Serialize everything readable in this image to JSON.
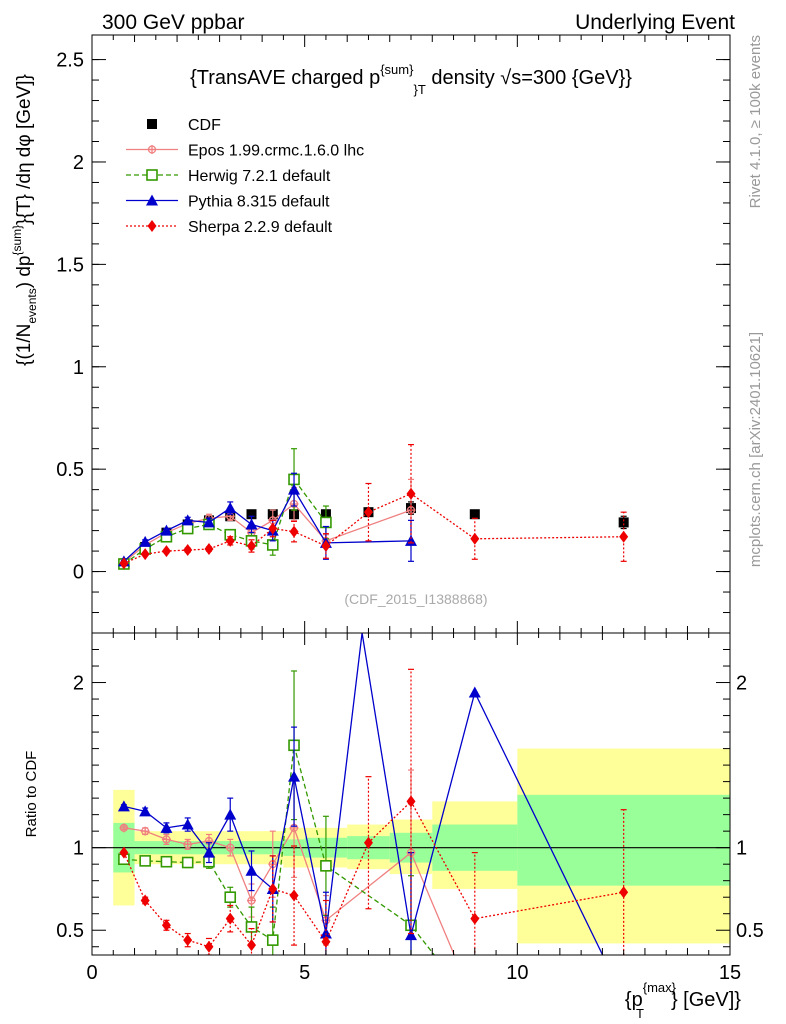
{
  "header": {
    "left": "300 GeV ppbar",
    "right": "Underlying Event"
  },
  "side_labels": {
    "top": "Rivet 4.1.0, ≥ 100k events",
    "bottom": "mcplots.cern.ch [arXiv:2401.10621]"
  },
  "chart_data": [
    {
      "type": "scatter",
      "panel": "main",
      "title": "{TransAVE charged p^{sum}_T density √s=300 {GeV}}",
      "watermark": "(CDF_2015_I1388868)",
      "ylabel": "{(1/N_events) dp^{sum}}{T} /dη dφ [GeV]}",
      "ylabel_parts": {
        "a": "{(1/N",
        "b": "events",
        "c": ") dp",
        "d": "{sum}",
        "e": "}{T} /dη  dφ [GeV]}"
      },
      "xlabel": "",
      "xlim": [
        0,
        15
      ],
      "ylim": [
        -0.3,
        2.62
      ],
      "x_ticks": [
        0,
        5,
        10,
        15
      ],
      "y_ticks": [
        0,
        0.5,
        1,
        1.5,
        2,
        2.5
      ],
      "y_tick_labels": [
        "0",
        "0.5",
        "1",
        "1.5",
        "2",
        "2.5"
      ],
      "legend_position": "top-left",
      "series": [
        {
          "name": "CDF",
          "color": "#000000",
          "marker": "square",
          "x": [
            0.75,
            1.25,
            1.75,
            2.25,
            2.75,
            3.25,
            3.75,
            4.25,
            4.75,
            5.5,
            6.5,
            7.5,
            9.0,
            12.5
          ],
          "y": [
            0.04,
            0.12,
            0.19,
            0.23,
            0.25,
            0.27,
            0.28,
            0.28,
            0.28,
            0.28,
            0.29,
            0.31,
            0.28,
            0.24
          ],
          "err": [
            0.005,
            0.01,
            0.015,
            0.015,
            0.02,
            0.02,
            0.02,
            0.02,
            0.02,
            0.02,
            0.02,
            0.03,
            0.02,
            0.03
          ]
        },
        {
          "name": "Epos 1.99.crmc.1.6.0 lhc",
          "color": "#f08080",
          "marker": "cross",
          "line": "solid",
          "x": [
            0.75,
            1.25,
            1.75,
            2.25,
            2.75,
            3.25,
            3.75,
            4.25,
            4.75,
            5.5,
            7.5
          ],
          "y": [
            0.045,
            0.13,
            0.19,
            0.235,
            0.26,
            0.27,
            0.19,
            0.25,
            0.33,
            0.15,
            0.3
          ],
          "err": [
            0.003,
            0.01,
            0.01,
            0.015,
            0.02,
            0.02,
            0.03,
            0.05,
            0.08,
            0.03,
            0.15
          ]
        },
        {
          "name": "Herwig 7.2.1 default",
          "color": "#339900",
          "marker": "open-square",
          "line": "dashed",
          "x": [
            0.75,
            1.25,
            1.75,
            2.25,
            2.75,
            3.25,
            3.75,
            4.25,
            4.75,
            5.5
          ],
          "y": [
            0.037,
            0.11,
            0.17,
            0.21,
            0.23,
            0.18,
            0.15,
            0.13,
            0.45,
            0.24
          ],
          "err": [
            0.003,
            0.01,
            0.01,
            0.015,
            0.02,
            0.02,
            0.04,
            0.05,
            0.15,
            0.08
          ]
        },
        {
          "name": "Pythia 8.315 default",
          "color": "#0000cc",
          "marker": "triangle",
          "line": "solid",
          "x": [
            0.75,
            1.25,
            1.75,
            2.25,
            2.75,
            3.25,
            3.75,
            4.25,
            4.75,
            5.5,
            7.5
          ],
          "y": [
            0.05,
            0.145,
            0.2,
            0.25,
            0.24,
            0.31,
            0.23,
            0.2,
            0.4,
            0.14,
            0.15
          ],
          "err": [
            0.003,
            0.01,
            0.01,
            0.015,
            0.02,
            0.03,
            0.04,
            0.05,
            0.08,
            0.08,
            0.1
          ]
        },
        {
          "name": "Sherpa 2.2.9 default",
          "color": "#ee0000",
          "marker": "diamond",
          "line": "dotted",
          "x": [
            0.75,
            1.25,
            1.75,
            2.25,
            2.75,
            3.25,
            3.75,
            4.25,
            4.75,
            5.5,
            6.5,
            7.5,
            9.0,
            12.5
          ],
          "y": [
            0.04,
            0.085,
            0.1,
            0.105,
            0.11,
            0.15,
            0.125,
            0.21,
            0.195,
            0.125,
            0.29,
            0.38,
            0.16,
            0.17
          ],
          "err": [
            0.003,
            0.005,
            0.008,
            0.01,
            0.01,
            0.02,
            0.03,
            0.04,
            0.05,
            0.06,
            0.14,
            0.24,
            0.1,
            0.12
          ]
        }
      ]
    },
    {
      "type": "scatter",
      "panel": "ratio",
      "ylabel": "Ratio to CDF",
      "xlabel": "{p_T^{max}} [GeV]}",
      "xlabel_parts": {
        "a": "{p",
        "sup": "{max}",
        "sub": "T",
        "c": "} [GeV]}"
      },
      "xlim": [
        0,
        15
      ],
      "ylim": [
        0.35,
        2.3
      ],
      "x_ticks": [
        0,
        5,
        10,
        15
      ],
      "x_tick_labels": [
        "0",
        "5",
        "10",
        "15"
      ],
      "y_ticks": [
        0.5,
        1,
        2
      ],
      "y_tick_labels": [
        "0.5",
        "1",
        "2"
      ],
      "reference_line": 1,
      "uncertainty_bands": [
        {
          "x0": 0.5,
          "x1": 1.0,
          "inner": [
            0.85,
            1.15
          ],
          "outer": [
            0.65,
            1.35
          ]
        },
        {
          "x0": 1.0,
          "x1": 4.5,
          "inner": [
            0.96,
            1.04
          ],
          "outer": [
            0.9,
            1.1
          ]
        },
        {
          "x0": 4.5,
          "x1": 5.0,
          "inner": [
            0.95,
            1.05
          ],
          "outer": [
            0.88,
            1.12
          ]
        },
        {
          "x0": 5.0,
          "x1": 6.0,
          "inner": [
            0.94,
            1.06
          ],
          "outer": [
            0.88,
            1.12
          ]
        },
        {
          "x0": 6.0,
          "x1": 7.0,
          "inner": [
            0.93,
            1.07
          ],
          "outer": [
            0.87,
            1.14
          ]
        },
        {
          "x0": 7.0,
          "x1": 8.0,
          "inner": [
            0.91,
            1.09
          ],
          "outer": [
            0.84,
            1.17
          ]
        },
        {
          "x0": 8.0,
          "x1": 10.0,
          "inner": [
            0.86,
            1.14
          ],
          "outer": [
            0.75,
            1.28
          ]
        },
        {
          "x0": 10.0,
          "x1": 15.0,
          "inner": [
            0.77,
            1.32
          ],
          "outer": [
            0.42,
            1.6
          ]
        }
      ],
      "series": [
        {
          "name": "Epos 1.99.crmc.1.6.0 lhc",
          "color": "#f08080",
          "marker": "cross",
          "line": "solid",
          "x": [
            0.75,
            1.25,
            1.75,
            2.25,
            2.75,
            3.25,
            3.75,
            4.25,
            4.75,
            5.5,
            7.5,
            8.6
          ],
          "y": [
            1.12,
            1.1,
            1.05,
            1.02,
            1.04,
            1.0,
            0.68,
            0.9,
            1.12,
            0.56,
            0.97,
            0.3
          ],
          "err": [
            0.01,
            0.02,
            0.03,
            0.03,
            0.04,
            0.05,
            0.1,
            0.2,
            0.3,
            0.15,
            0.5,
            0
          ]
        },
        {
          "name": "Herwig 7.2.1 default",
          "color": "#339900",
          "marker": "open-square",
          "line": "dashed",
          "x": [
            0.75,
            1.25,
            1.75,
            2.25,
            2.75,
            3.25,
            3.75,
            4.25,
            4.75,
            5.5,
            7.5,
            8.2
          ],
          "y": [
            0.93,
            0.92,
            0.915,
            0.91,
            0.915,
            0.7,
            0.52,
            0.44,
            1.62,
            0.89,
            0.53,
            0.3
          ],
          "err": [
            0.01,
            0.02,
            0.02,
            0.03,
            0.04,
            0.06,
            0.12,
            0.2,
            0.45,
            0.3,
            0.3,
            0
          ]
        },
        {
          "name": "Pythia 8.315 default",
          "color": "#0000cc",
          "marker": "triangle",
          "line": "solid",
          "x": [
            0.75,
            1.25,
            1.75,
            2.25,
            2.75,
            3.25,
            3.75,
            4.25,
            4.75,
            5.5,
            6.35,
            7.5,
            9.0,
            12.1
          ],
          "y": [
            1.25,
            1.22,
            1.12,
            1.14,
            0.97,
            1.2,
            0.86,
            0.75,
            1.43,
            0.48,
            2.3,
            0.47,
            1.94,
            0.3
          ],
          "err": [
            0.01,
            0.02,
            0.03,
            0.04,
            0.06,
            0.1,
            0.12,
            0.2,
            0.3,
            0.25,
            0,
            0.5,
            0,
            0
          ]
        },
        {
          "name": "Sherpa 2.2.9 default",
          "color": "#ee0000",
          "marker": "diamond",
          "line": "dotted",
          "x": [
            0.75,
            1.25,
            1.75,
            2.25,
            2.75,
            3.25,
            3.75,
            4.25,
            4.75,
            5.5,
            6.5,
            7.5,
            9.0,
            12.5
          ],
          "y": [
            0.97,
            0.68,
            0.53,
            0.44,
            0.4,
            0.57,
            0.41,
            0.75,
            0.71,
            0.43,
            1.03,
            1.28,
            0.57,
            0.73
          ],
          "err": [
            0.01,
            0.02,
            0.03,
            0.04,
            0.05,
            0.08,
            0.1,
            0.2,
            0.3,
            0.25,
            0.4,
            0.8,
            0.4,
            0.5
          ]
        }
      ]
    }
  ]
}
